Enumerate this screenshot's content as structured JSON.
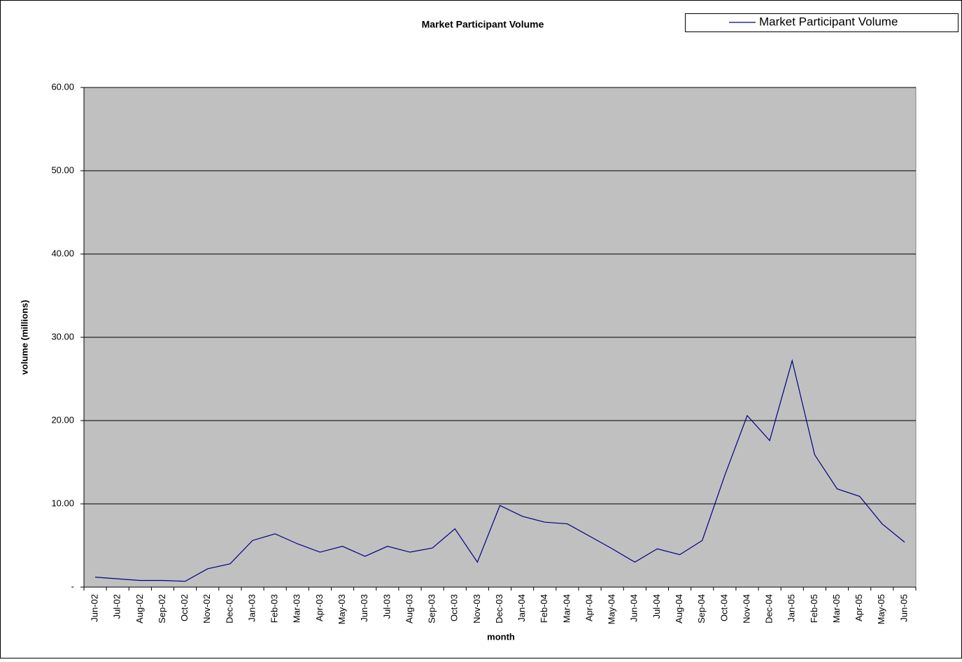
{
  "chart_data": {
    "type": "line",
    "title": "Market Participant Volume",
    "x_label": "month",
    "y_label": "volume (millions)",
    "categories": [
      "Jun-02",
      "Jul-02",
      "Aug-02",
      "Sep-02",
      "Oct-02",
      "Nov-02",
      "Dec-02",
      "Jan-03",
      "Feb-03",
      "Mar-03",
      "Apr-03",
      "May-03",
      "Jun-03",
      "Jul-03",
      "Aug-03",
      "Sep-03",
      "Oct-03",
      "Nov-03",
      "Dec-03",
      "Jan-04",
      "Feb-04",
      "Mar-04",
      "Apr-04",
      "May-04",
      "Jun-04",
      "Jul-04",
      "Aug-04",
      "Sep-04",
      "Oct-04",
      "Nov-04",
      "Dec-04",
      "Jan-05",
      "Feb-05",
      "Mar-05",
      "Apr-05",
      "May-05",
      "Jun-05"
    ],
    "series": [
      {
        "name": "Market Participant Volume",
        "color": "#000080",
        "values": [
          1.2,
          1.0,
          0.8,
          0.8,
          0.7,
          2.2,
          2.8,
          5.6,
          6.4,
          5.2,
          4.2,
          4.9,
          3.7,
          4.9,
          4.2,
          4.7,
          7.0,
          3.0,
          9.8,
          8.5,
          7.8,
          7.6,
          6.1,
          4.6,
          3.0,
          4.6,
          3.9,
          5.6,
          13.4,
          20.6,
          17.6,
          27.2,
          15.9,
          11.8,
          10.9,
          7.6,
          5.4
        ]
      }
    ],
    "ylim": [
      0,
      60
    ],
    "yticks": [
      {
        "value": 0,
        "label": "-"
      },
      {
        "value": 10,
        "label": "10.00"
      },
      {
        "value": 20,
        "label": "20.00"
      },
      {
        "value": 30,
        "label": "30.00"
      },
      {
        "value": 40,
        "label": "40.00"
      },
      {
        "value": 50,
        "label": "50.00"
      },
      {
        "value": 60,
        "label": "60.00"
      }
    ],
    "grid": true,
    "plot_background": "#c0c0c0",
    "legend": "top-right"
  }
}
